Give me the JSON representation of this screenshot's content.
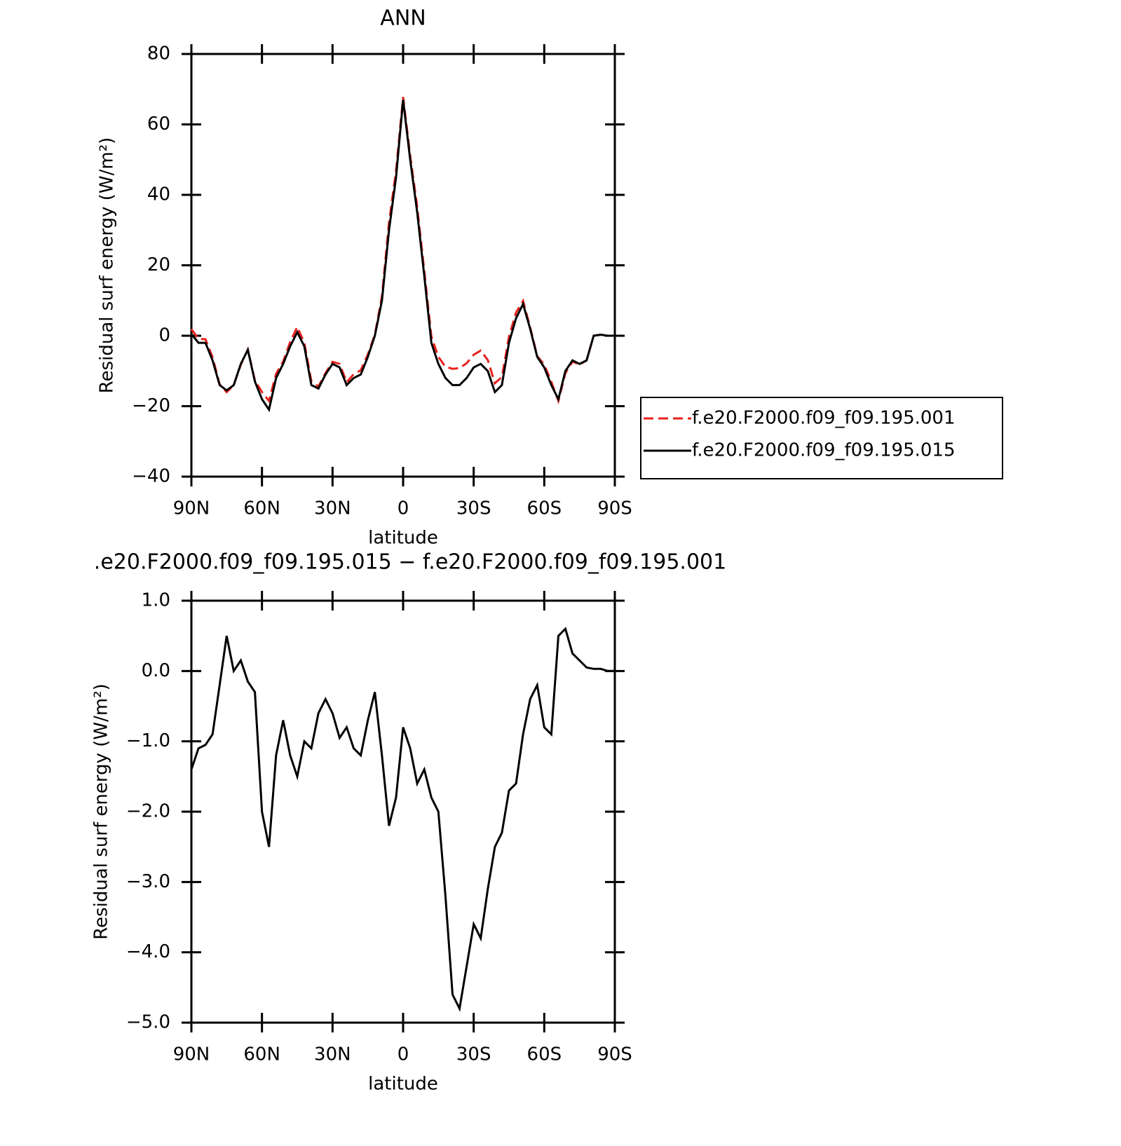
{
  "chart_data": [
    {
      "type": "line",
      "title": "ANN",
      "xlabel": "latitude",
      "ylabel": "Residual surf energy (W/m²)",
      "x": [
        90,
        87,
        84,
        81,
        78,
        75,
        72,
        69,
        66,
        63,
        60,
        57,
        54,
        51,
        48,
        45,
        42,
        39,
        36,
        33,
        30,
        27,
        24,
        21,
        18,
        15,
        12,
        9,
        6,
        3,
        0,
        -3,
        -6,
        -9,
        -12,
        -15,
        -18,
        -21,
        -24,
        -27,
        -30,
        -33,
        -36,
        -39,
        -42,
        -45,
        -48,
        -51,
        -54,
        -57,
        -60,
        -63,
        -66,
        -69,
        -72,
        -75,
        -78,
        -81,
        -84,
        -87,
        -90
      ],
      "series": [
        {
          "name": "f.e20.F2000.f09_f09.195.001",
          "color": "#e8211d",
          "linestyle": "dashed",
          "values": [
            1.9,
            -0.9,
            -1,
            -6.1,
            -13.8,
            -16,
            -14,
            -8.2,
            -3.9,
            -12.7,
            -16,
            -18.5,
            -10.8,
            -7.3,
            -1.8,
            2.5,
            -2,
            -12.9,
            -14.4,
            -10.6,
            -7.4,
            -8,
            -13.2,
            -10.9,
            -9.8,
            -5.3,
            0.3,
            11.2,
            32.2,
            46.8,
            67.8,
            51.1,
            36.6,
            18.4,
            -0.2,
            -6,
            -8.8,
            -9.4,
            -9.2,
            -7.8,
            -5.4,
            -4.2,
            -6.9,
            -13.5,
            -11.7,
            -0.3,
            6.6,
            9.9,
            2.4,
            -5.8,
            -8.2,
            -13.1,
            -18.5,
            -10.6,
            -7.3,
            -8.2,
            -7,
            0,
            0.3,
            0,
            0
          ]
        },
        {
          "name": "f.e20.F2000.f09_f09.195.015",
          "color": "#000000",
          "linestyle": "solid",
          "values": [
            0.5,
            -2,
            -2,
            -7,
            -14,
            -15.5,
            -14,
            -8,
            -4,
            -13,
            -18,
            -21,
            -12,
            -8,
            -3,
            1,
            -3,
            -14,
            -15,
            -11,
            -8,
            -9,
            -14,
            -12,
            -11,
            -6,
            0,
            10,
            30,
            45,
            67,
            50,
            35,
            17,
            -2,
            -8,
            -12,
            -14,
            -14,
            -12,
            -9,
            -8,
            -10,
            -16,
            -14,
            -2,
            5,
            9,
            2,
            -6,
            -9,
            -14,
            -18,
            -10,
            -7,
            -8,
            -7,
            0,
            0.3,
            0,
            0
          ]
        }
      ],
      "xlim": [
        90,
        -90
      ],
      "xticks": [
        {
          "value": 90,
          "label": "90N"
        },
        {
          "value": 60,
          "label": "60N"
        },
        {
          "value": 30,
          "label": "30N"
        },
        0,
        {
          "value": -30,
          "label": "30S"
        },
        {
          "value": -60,
          "label": "60S"
        },
        {
          "value": -90,
          "label": "90S"
        }
      ],
      "ylim": [
        -40,
        80
      ],
      "yticks": [
        {
          "value": -40,
          "label": "−40"
        },
        {
          "value": -20,
          "label": "−20"
        },
        0,
        20,
        40,
        60,
        80
      ],
      "legend": "right"
    },
    {
      "type": "line",
      "title": ".e20.F2000.f09_f09.195.015 − f.e20.F2000.f09_f09.195.001",
      "xlabel": "latitude",
      "ylabel": "Residual surf energy (W/m²)",
      "x": [
        90,
        87,
        84,
        81,
        78,
        75,
        72,
        69,
        66,
        63,
        60,
        57,
        54,
        51,
        48,
        45,
        42,
        39,
        36,
        33,
        30,
        27,
        24,
        21,
        18,
        15,
        12,
        9,
        6,
        3,
        0,
        -3,
        -6,
        -9,
        -12,
        -15,
        -18,
        -21,
        -24,
        -27,
        -30,
        -33,
        -36,
        -39,
        -42,
        -45,
        -48,
        -51,
        -54,
        -57,
        -60,
        -63,
        -66,
        -69,
        -72,
        -75,
        -78,
        -81,
        -84,
        -87,
        -90
      ],
      "series": [
        {
          "color": "#000000",
          "linestyle": "solid",
          "values": [
            -1.4,
            -1.1,
            -1.05,
            -0.9,
            -0.2,
            0.5,
            0,
            0.15,
            -0.15,
            -0.3,
            -2,
            -2.5,
            -1.2,
            -0.7,
            -1.2,
            -1.5,
            -1,
            -1.1,
            -0.6,
            -0.4,
            -0.6,
            -0.95,
            -0.8,
            -1.1,
            -1.2,
            -0.7,
            -0.3,
            -1.2,
            -2.2,
            -1.8,
            -0.8,
            -1.1,
            -1.6,
            -1.4,
            -1.8,
            -2,
            -3.2,
            -4.6,
            -4.8,
            -4.2,
            -3.6,
            -3.8,
            -3.1,
            -2.5,
            -2.3,
            -1.7,
            -1.6,
            -0.9,
            -0.4,
            -0.2,
            -0.8,
            -0.9,
            0.5,
            0.6,
            0.25,
            0.15,
            0.05,
            0.03,
            0.03,
            0,
            0
          ]
        }
      ],
      "xlim": [
        90,
        -90
      ],
      "xticks": [
        {
          "value": 90,
          "label": "90N"
        },
        {
          "value": 60,
          "label": "60N"
        },
        {
          "value": 30,
          "label": "30N"
        },
        0,
        {
          "value": -30,
          "label": "30S"
        },
        {
          "value": -60,
          "label": "60S"
        },
        {
          "value": -90,
          "label": "90S"
        }
      ],
      "ylim": [
        -5,
        1
      ],
      "yticks": [
        {
          "value": -5,
          "label": "−5.0"
        },
        {
          "value": -4,
          "label": "−4.0"
        },
        {
          "value": -3,
          "label": "−3.0"
        },
        {
          "value": -2,
          "label": "−2.0"
        },
        {
          "value": -1,
          "label": "−1.0"
        },
        {
          "value": 0,
          "label": "0.0"
        },
        {
          "value": 1,
          "label": "1.0"
        }
      ]
    }
  ]
}
